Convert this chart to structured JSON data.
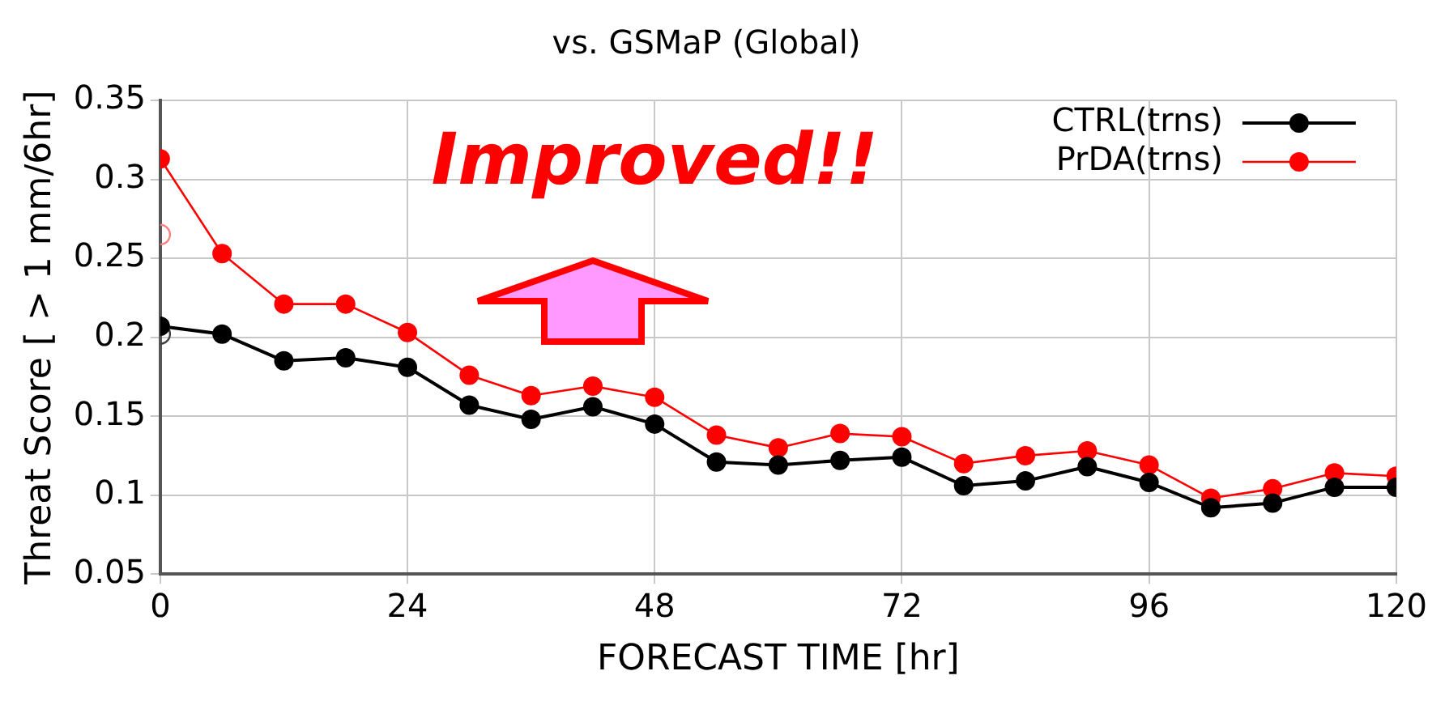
{
  "chart_data": {
    "type": "line",
    "title": "vs. GSMaP (Global)",
    "xlabel": "FORECAST TIME [hr]",
    "ylabel": "Threat Score [ > 1 mm/6hr]",
    "x": [
      0,
      6,
      12,
      18,
      24,
      30,
      36,
      42,
      48,
      54,
      60,
      66,
      72,
      78,
      84,
      90,
      96,
      102,
      108,
      114,
      120
    ],
    "series": [
      {
        "name": "CTRL(trns)",
        "color": "#000000",
        "values": [
          0.207,
          0.202,
          0.185,
          0.187,
          0.181,
          0.157,
          0.148,
          0.156,
          0.145,
          0.121,
          0.119,
          0.122,
          0.124,
          0.106,
          0.109,
          0.118,
          0.108,
          0.092,
          0.095,
          0.105,
          0.105
        ]
      },
      {
        "name": "PrDA(trns)",
        "color": "#ff0000",
        "values": [
          0.313,
          0.253,
          0.221,
          0.221,
          0.203,
          0.176,
          0.163,
          0.169,
          0.162,
          0.138,
          0.13,
          0.139,
          0.137,
          0.12,
          0.125,
          0.128,
          0.119,
          0.098,
          0.104,
          0.114,
          0.112
        ]
      },
      {
        "type": "scatter",
        "color": "#ff8080",
        "x": [
          0
        ],
        "values": [
          0.265
        ]
      },
      {
        "type": "scatter",
        "color": "#404040",
        "x": [
          0
        ],
        "values": [
          0.202
        ]
      }
    ],
    "xlim": [
      0,
      120
    ],
    "xticks": [
      0,
      24,
      48,
      72,
      96,
      120
    ],
    "ylim": [
      0.05,
      0.35
    ],
    "yticks": [
      0.05,
      0.1,
      0.15,
      0.2,
      0.25,
      0.3,
      0.35
    ],
    "annotations": [
      "Improved!!"
    ],
    "grid": true,
    "legend": "top right",
    "marker": "circle",
    "line_style": "solid"
  }
}
